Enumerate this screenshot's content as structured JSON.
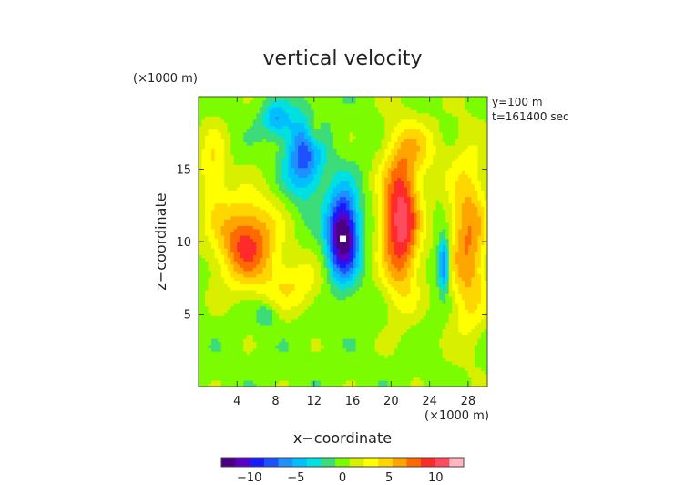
{
  "chart_data": {
    "type": "heatmap",
    "title": "vertical velocity",
    "xlabel": "x−coordinate",
    "ylabel": "z−coordinate",
    "x_unit": "(×1000 m)",
    "y_unit": "(×1000 m)",
    "xlim": [
      0,
      30
    ],
    "ylim": [
      0,
      20
    ],
    "x_ticks": [
      4,
      8,
      12,
      16,
      20,
      24,
      28
    ],
    "y_ticks": [
      5,
      10,
      15
    ],
    "annotations": [
      "y=100 m",
      "t=161400 sec"
    ],
    "colorbar": {
      "ticks": [
        -10,
        -5,
        0,
        5,
        10
      ],
      "tick_labels": [
        "−10",
        "−5",
        "0",
        "5",
        "10"
      ],
      "range": [
        -13,
        13
      ]
    },
    "background_value": 0,
    "features": [
      {
        "kind": "updraft",
        "x": 21,
        "z": 11.5,
        "sx": 2.0,
        "sz": 5.0,
        "peak": 11
      },
      {
        "kind": "updraft",
        "x": 5,
        "z": 10,
        "sx": 3.2,
        "sz": 3.0,
        "peak": 9
      },
      {
        "kind": "updraft",
        "x": 28,
        "z": 10,
        "sx": 2.0,
        "sz": 6.0,
        "peak": 7
      },
      {
        "kind": "updraft",
        "x": 10,
        "z": 7,
        "sx": 3.0,
        "sz": 1.8,
        "peak": 3.5
      },
      {
        "kind": "updraft",
        "x": 12,
        "z": 17.5,
        "sx": 1.0,
        "sz": 1.2,
        "peak": 4
      },
      {
        "kind": "updraft",
        "x": 1.5,
        "z": 15,
        "sx": 1.5,
        "sz": 3.0,
        "peak": 4
      },
      {
        "kind": "updraft",
        "x": 23,
        "z": 16.5,
        "sx": 2.5,
        "sz": 2.0,
        "peak": 3
      },
      {
        "kind": "downdraft",
        "x": 15,
        "z": 10.5,
        "sx": 1.6,
        "sz": 3.0,
        "peak": -14
      },
      {
        "kind": "downdraft",
        "x": 11,
        "z": 16,
        "sx": 2.0,
        "sz": 2.8,
        "peak": -8
      },
      {
        "kind": "downdraft",
        "x": 8,
        "z": 18.5,
        "sx": 1.5,
        "sz": 1.2,
        "peak": -5
      },
      {
        "kind": "downdraft",
        "x": 25.5,
        "z": 8.5,
        "sx": 0.6,
        "sz": 1.8,
        "peak": -9
      },
      {
        "kind": "downdraft",
        "x": 7,
        "z": 5,
        "sx": 1.0,
        "sz": 0.8,
        "peak": -3
      }
    ]
  }
}
